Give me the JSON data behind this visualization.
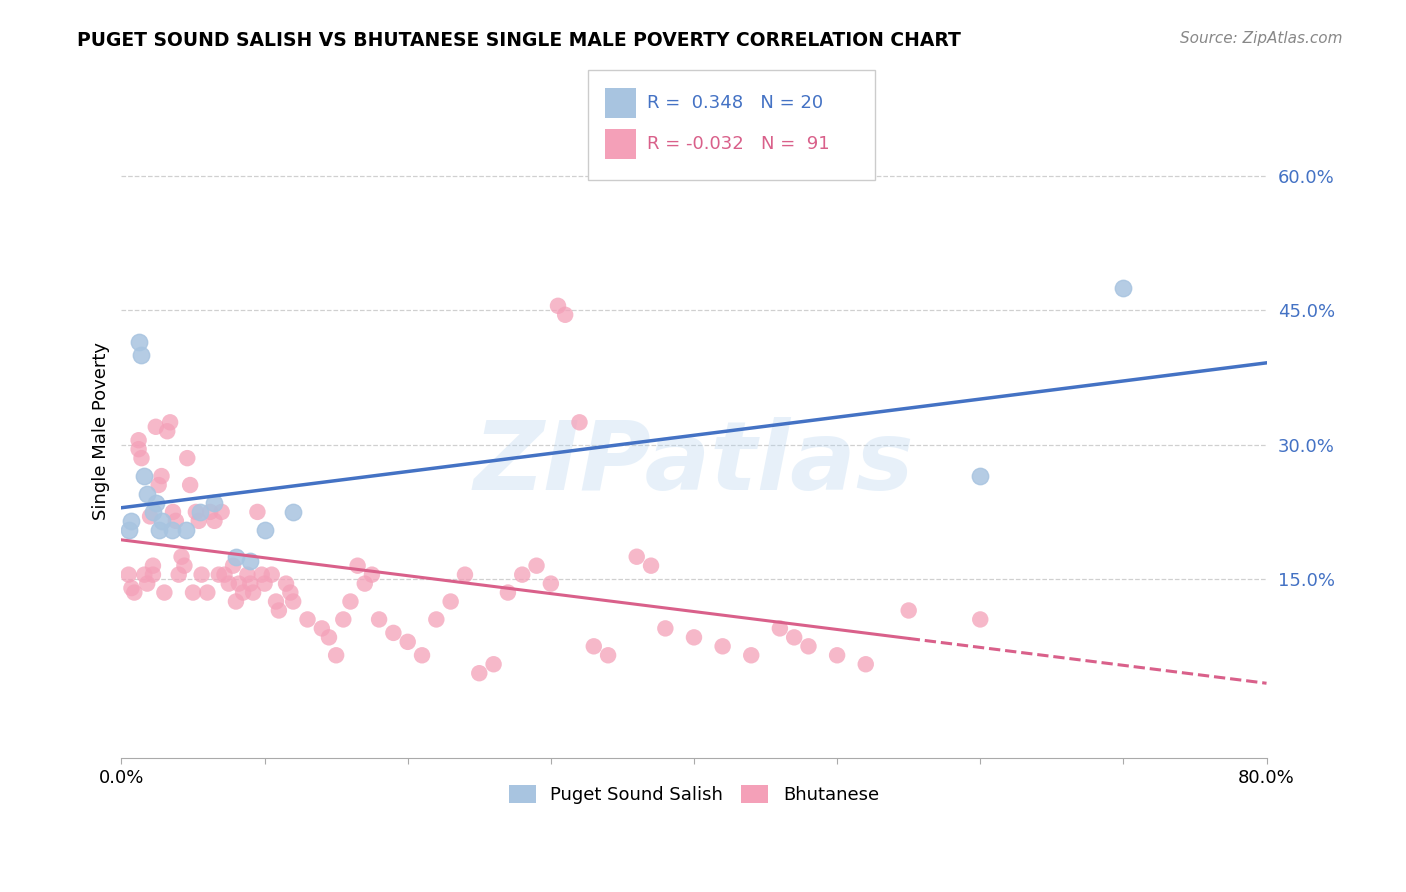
{
  "title": "PUGET SOUND SALISH VS BHUTANESE SINGLE MALE POVERTY CORRELATION CHART",
  "source": "Source: ZipAtlas.com",
  "ylabel_label": "Single Male Poverty",
  "xlim": [
    0.0,
    0.8
  ],
  "ylim": [
    -0.05,
    0.68
  ],
  "ytick_vals": [
    0.15,
    0.3,
    0.45,
    0.6
  ],
  "ytick_labels": [
    "15.0%",
    "30.0%",
    "45.0%",
    "60.0%"
  ],
  "xtick_vals": [
    0.0,
    0.1,
    0.2,
    0.3,
    0.4,
    0.5,
    0.6,
    0.7,
    0.8
  ],
  "xtick_labels": [
    "0.0%",
    "",
    "",
    "",
    "",
    "",
    "",
    "",
    "80.0%"
  ],
  "salish_color": "#a8c4e0",
  "bhutanese_color": "#f4a0b8",
  "salish_line_color": "#4472c4",
  "bhutanese_line_color": "#d9608a",
  "legend_r_salish": "0.348",
  "legend_n_salish": "20",
  "legend_r_bhutanese": "-0.032",
  "legend_n_bhutanese": "91",
  "salish_x": [
    0.005,
    0.007,
    0.012,
    0.014,
    0.016,
    0.018,
    0.022,
    0.024,
    0.026,
    0.028,
    0.035,
    0.045,
    0.055,
    0.065,
    0.08,
    0.09,
    0.1,
    0.12,
    0.6,
    0.7
  ],
  "salish_y": [
    0.205,
    0.215,
    0.415,
    0.4,
    0.265,
    0.245,
    0.225,
    0.235,
    0.205,
    0.215,
    0.205,
    0.205,
    0.225,
    0.235,
    0.175,
    0.17,
    0.205,
    0.225,
    0.265,
    0.475
  ],
  "bhutanese_x": [
    0.005,
    0.007,
    0.009,
    0.012,
    0.012,
    0.014,
    0.016,
    0.018,
    0.02,
    0.022,
    0.022,
    0.024,
    0.026,
    0.028,
    0.03,
    0.032,
    0.034,
    0.036,
    0.038,
    0.04,
    0.042,
    0.044,
    0.046,
    0.048,
    0.05,
    0.052,
    0.054,
    0.056,
    0.06,
    0.062,
    0.065,
    0.068,
    0.07,
    0.072,
    0.075,
    0.078,
    0.08,
    0.082,
    0.085,
    0.088,
    0.09,
    0.092,
    0.095,
    0.098,
    0.1,
    0.105,
    0.108,
    0.11,
    0.115,
    0.118,
    0.12,
    0.13,
    0.14,
    0.145,
    0.15,
    0.155,
    0.16,
    0.165,
    0.17,
    0.175,
    0.18,
    0.19,
    0.2,
    0.21,
    0.22,
    0.23,
    0.24,
    0.25,
    0.26,
    0.27,
    0.28,
    0.29,
    0.3,
    0.305,
    0.31,
    0.32,
    0.33,
    0.34,
    0.36,
    0.37,
    0.38,
    0.4,
    0.42,
    0.44,
    0.46,
    0.47,
    0.48,
    0.5,
    0.52,
    0.55,
    0.6
  ],
  "bhutanese_y": [
    0.155,
    0.14,
    0.135,
    0.305,
    0.295,
    0.285,
    0.155,
    0.145,
    0.22,
    0.165,
    0.155,
    0.32,
    0.255,
    0.265,
    0.135,
    0.315,
    0.325,
    0.225,
    0.215,
    0.155,
    0.175,
    0.165,
    0.285,
    0.255,
    0.135,
    0.225,
    0.215,
    0.155,
    0.135,
    0.225,
    0.215,
    0.155,
    0.225,
    0.155,
    0.145,
    0.165,
    0.125,
    0.145,
    0.135,
    0.155,
    0.145,
    0.135,
    0.225,
    0.155,
    0.145,
    0.155,
    0.125,
    0.115,
    0.145,
    0.135,
    0.125,
    0.105,
    0.095,
    0.085,
    0.065,
    0.105,
    0.125,
    0.165,
    0.145,
    0.155,
    0.105,
    0.09,
    0.08,
    0.065,
    0.105,
    0.125,
    0.155,
    0.045,
    0.055,
    0.135,
    0.155,
    0.165,
    0.145,
    0.455,
    0.445,
    0.325,
    0.075,
    0.065,
    0.175,
    0.165,
    0.095,
    0.085,
    0.075,
    0.065,
    0.095,
    0.085,
    0.075,
    0.065,
    0.055,
    0.115,
    0.105
  ],
  "watermark_text": "ZIPatlas",
  "background_color": "#ffffff",
  "grid_color": "#d0d0d0"
}
